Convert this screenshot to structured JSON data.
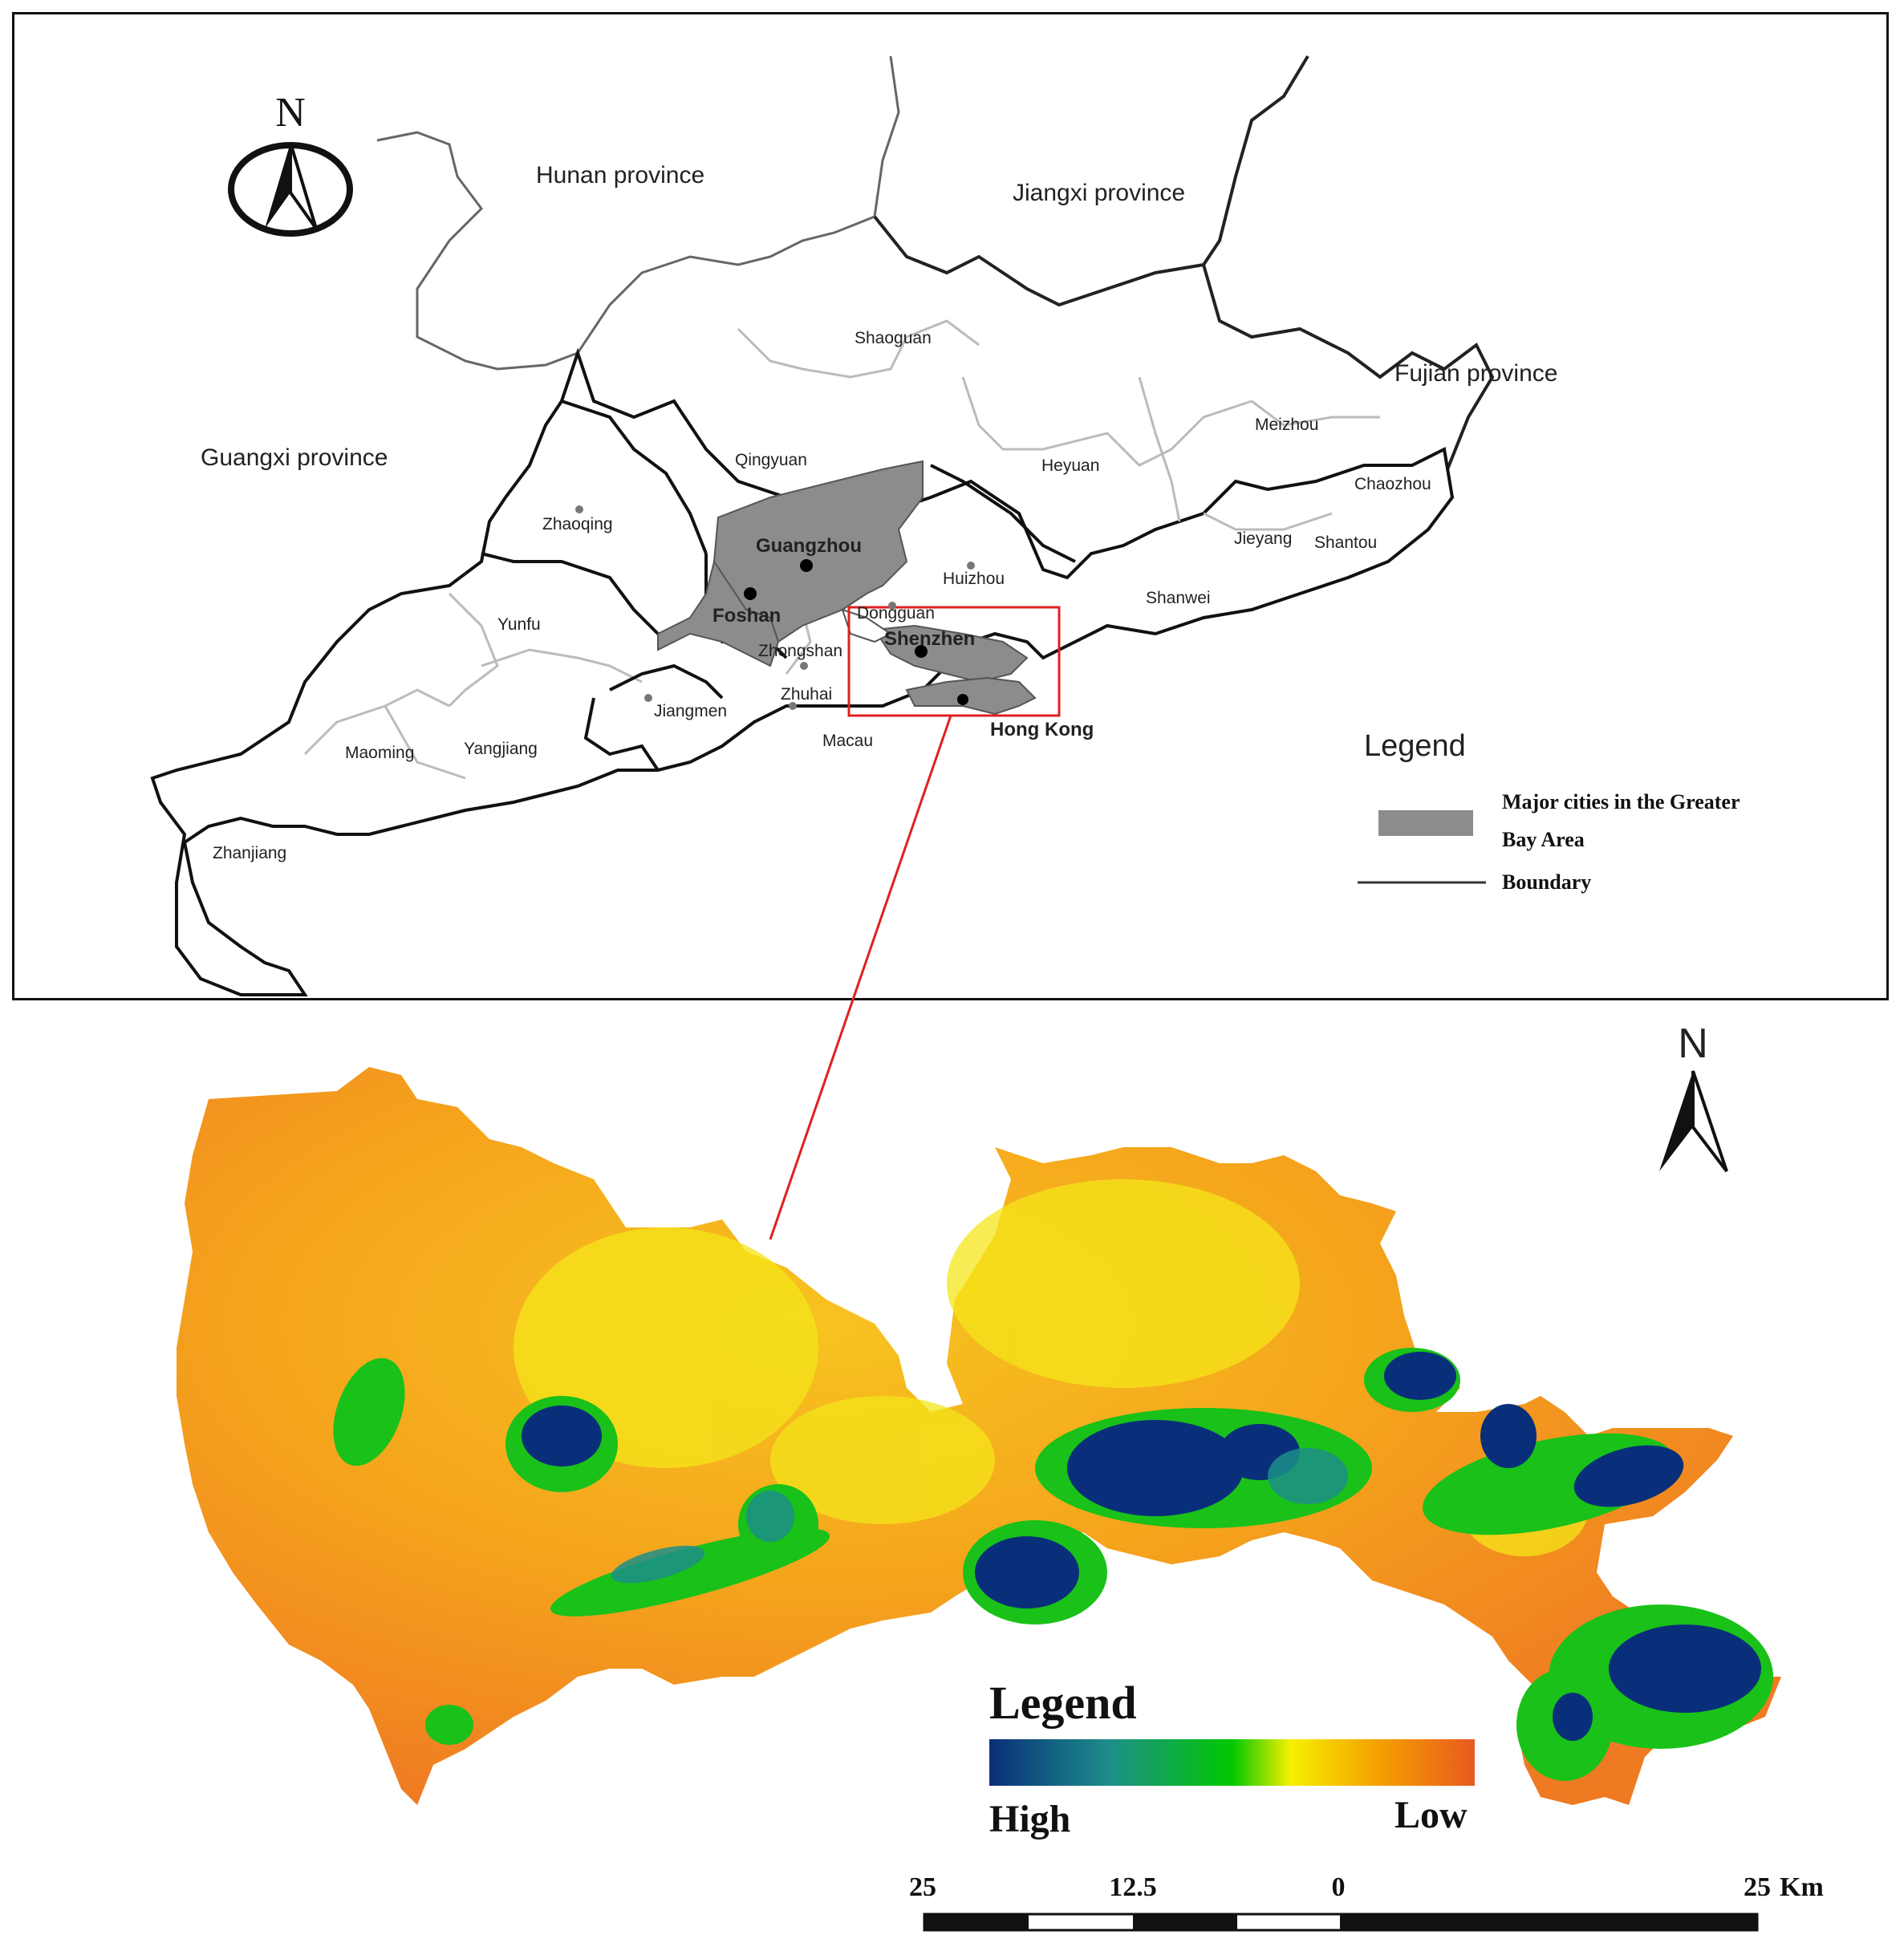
{
  "top_map": {
    "north_label": "N",
    "provinces": [
      {
        "name": "Hunan province"
      },
      {
        "name": "Jiangxi province"
      },
      {
        "name": "Fujian province"
      },
      {
        "name": "Guangxi province"
      }
    ],
    "cities": [
      {
        "name": "Shaoguan"
      },
      {
        "name": "Meizhou"
      },
      {
        "name": "Qingyuan"
      },
      {
        "name": "Heyuan"
      },
      {
        "name": "Chaozhou"
      },
      {
        "name": "Zhaoqing"
      },
      {
        "name": "Guangzhou"
      },
      {
        "name": "Huizhou"
      },
      {
        "name": "Jieyang"
      },
      {
        "name": "Shantou"
      },
      {
        "name": "Foshan"
      },
      {
        "name": "Dongguan"
      },
      {
        "name": "Shanwei"
      },
      {
        "name": "Yunfu"
      },
      {
        "name": "Shenzhen"
      },
      {
        "name": "Zhongshan"
      },
      {
        "name": "Zhuhai"
      },
      {
        "name": "Jiangmen"
      },
      {
        "name": "Macau"
      },
      {
        "name": "Hong Kong"
      },
      {
        "name": "Maoming"
      },
      {
        "name": "Yangjiang"
      },
      {
        "name": "Zhanjiang"
      }
    ],
    "legend": {
      "title": "Legend",
      "items": [
        {
          "label_line1": "Major cities in the Greater",
          "label_line2": "Bay Area",
          "color": "#8c8c8c"
        },
        {
          "label_line1": "Boundary",
          "color": "#333333"
        }
      ]
    },
    "colors": {
      "highlight": "#8c8c8c",
      "inset_box": "#e02020"
    }
  },
  "bottom_map": {
    "north_label": "N",
    "legend": {
      "title": "Legend",
      "high_label": "High",
      "low_label": "Low",
      "gradient_colors": [
        "#0a2f7a",
        "#1d8f8a",
        "#00c800",
        "#f5f000",
        "#f5a000",
        "#e85a20"
      ]
    },
    "scale_bar": {
      "ticks": [
        "25",
        "12.5",
        "0",
        "25"
      ],
      "unit": "Km"
    }
  }
}
